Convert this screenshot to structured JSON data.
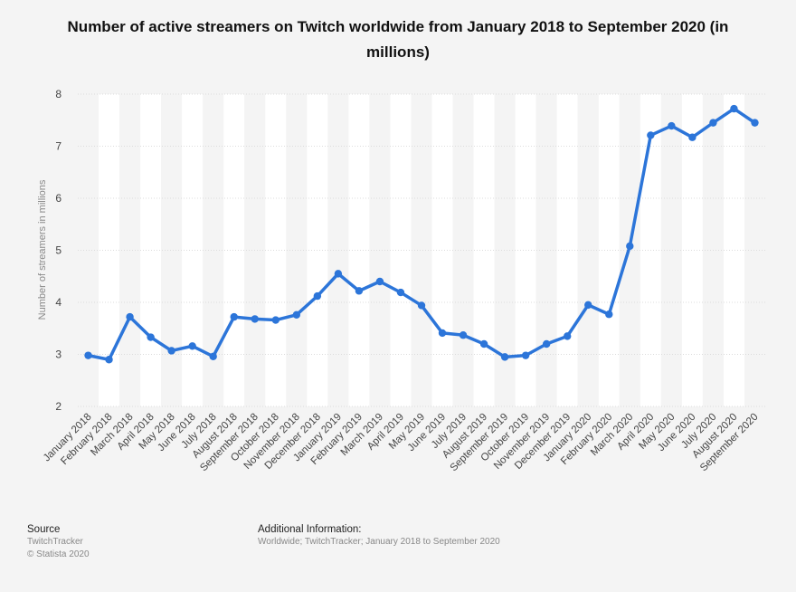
{
  "title": "Number of active streamers on Twitch worldwide from January 2018 to September 2020 (in millions)",
  "chart_data": {
    "type": "line",
    "title": "Number of active streamers on Twitch worldwide from January 2018 to September 2020 (in millions)",
    "xlabel": "",
    "ylabel": "Number of streamers in millions",
    "ylim": [
      2,
      8
    ],
    "yticks": [
      2,
      3,
      4,
      5,
      6,
      7,
      8
    ],
    "grid": true,
    "categories": [
      "January 2018",
      "February 2018",
      "March 2018",
      "April 2018",
      "May 2018",
      "June 2018",
      "July 2018",
      "August 2018",
      "September 2018",
      "October 2018",
      "November 2018",
      "December 2018",
      "January 2019",
      "February 2019",
      "March 2019",
      "April 2019",
      "May 2019",
      "June 2019",
      "July 2019",
      "August 2019",
      "September 2019",
      "October 2019",
      "November 2019",
      "December 2019",
      "January 2020",
      "February 2020",
      "March 2020",
      "April 2020",
      "May 2020",
      "June 2020",
      "July 2020",
      "August 2020",
      "September 2020"
    ],
    "values": [
      2.98,
      2.9,
      3.72,
      3.33,
      3.07,
      3.16,
      2.96,
      3.72,
      3.68,
      3.66,
      3.76,
      4.12,
      4.55,
      4.22,
      4.4,
      4.19,
      3.94,
      3.41,
      3.37,
      3.2,
      2.95,
      2.98,
      3.2,
      3.35,
      3.95,
      3.77,
      5.08,
      7.21,
      7.39,
      7.17,
      7.45,
      7.72,
      7.45
    ],
    "color": "#2c75d9"
  },
  "footer": {
    "source_label": "Source",
    "source_name": "TwitchTracker",
    "copyright": "© Statista 2020",
    "info_label": "Additional Information:",
    "info_text": "Worldwide; TwitchTracker; January 2018 to September 2020"
  }
}
